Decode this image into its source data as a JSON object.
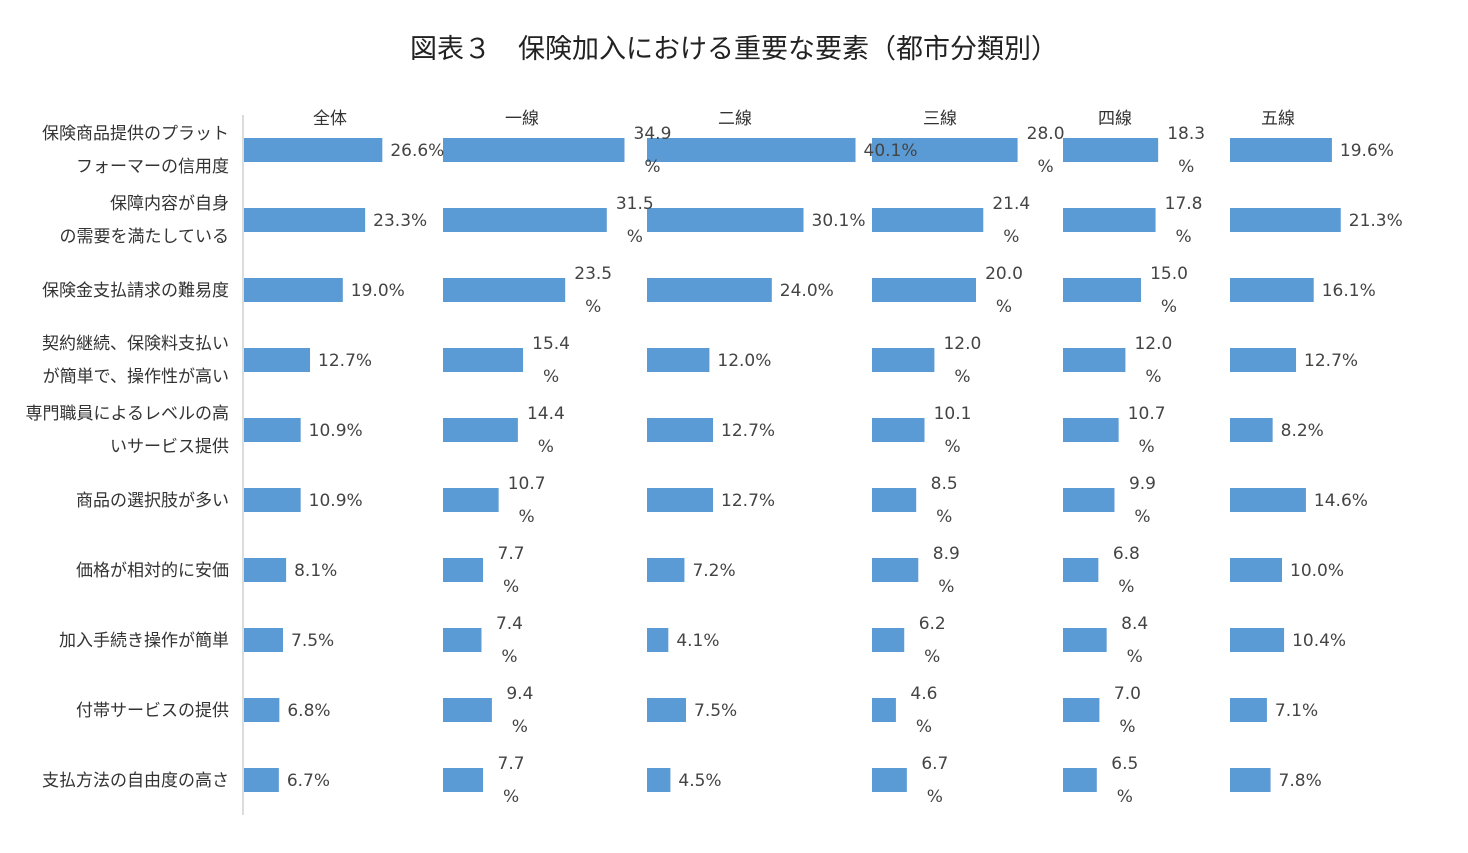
{
  "chart_data": {
    "type": "bar",
    "title": "図表３　保険加入における重要な要素（都市分類別）",
    "xlabel": "",
    "ylabel": "",
    "bar_color": "#5b9bd5",
    "categories": [
      [
        "保険商品提供のプラット",
        "フォーマーの信用度"
      ],
      [
        "保障内容が自身",
        "の需要を満たしている"
      ],
      [
        "保険金支払請求の難易度"
      ],
      [
        "契約継続、保険料支払い",
        "が簡単で、操作性が高い"
      ],
      [
        "専門職員によるレベルの高",
        "いサービス提供"
      ],
      [
        "商品の選択肢が多い"
      ],
      [
        "価格が相対的に安価"
      ],
      [
        "加入手続き操作が簡単"
      ],
      [
        "付帯サービスの提供"
      ],
      [
        "支払方法の自由度の高さ"
      ]
    ],
    "series": [
      {
        "name": "全体",
        "values": [
          26.6,
          23.3,
          19.0,
          12.7,
          10.9,
          10.9,
          8.1,
          7.5,
          6.8,
          6.7
        ],
        "labels": [
          [
            "26.6%"
          ],
          [
            "23.3%"
          ],
          [
            "19.0%"
          ],
          [
            "12.7%"
          ],
          [
            "10.9%"
          ],
          [
            "10.9%"
          ],
          [
            "8.1%"
          ],
          [
            "7.5%"
          ],
          [
            "6.8%"
          ],
          [
            "6.7%"
          ]
        ]
      },
      {
        "name": "一線",
        "values": [
          34.9,
          31.5,
          23.5,
          15.4,
          14.4,
          10.7,
          7.7,
          7.4,
          9.4,
          7.7
        ],
        "labels": [
          [
            "34.9",
            "%"
          ],
          [
            "31.5",
            "%"
          ],
          [
            "23.5",
            "%"
          ],
          [
            "15.4",
            "%"
          ],
          [
            "14.4",
            "%"
          ],
          [
            "10.7",
            "%"
          ],
          [
            "7.7",
            "%"
          ],
          [
            "7.4",
            "%"
          ],
          [
            "9.4",
            "%"
          ],
          [
            "7.7",
            "%"
          ]
        ]
      },
      {
        "name": "二線",
        "values": [
          40.1,
          30.1,
          24.0,
          12.0,
          12.7,
          12.7,
          7.2,
          4.1,
          7.5,
          4.5
        ],
        "labels": [
          [
            "40.1%"
          ],
          [
            "30.1%"
          ],
          [
            "24.0%"
          ],
          [
            "12.0%"
          ],
          [
            "12.7%"
          ],
          [
            "12.7%"
          ],
          [
            "7.2%"
          ],
          [
            "4.1%"
          ],
          [
            "7.5%"
          ],
          [
            "4.5%"
          ]
        ]
      },
      {
        "name": "三線",
        "values": [
          28.0,
          21.4,
          20.0,
          12.0,
          10.1,
          8.5,
          8.9,
          6.2,
          4.6,
          6.7
        ],
        "labels": [
          [
            "28.0",
            "%"
          ],
          [
            "21.4",
            "%"
          ],
          [
            "20.0",
            "%"
          ],
          [
            "12.0",
            "%"
          ],
          [
            "10.1",
            "%"
          ],
          [
            "8.5",
            "%"
          ],
          [
            "8.9",
            "%"
          ],
          [
            "6.2",
            "%"
          ],
          [
            "4.6",
            "%"
          ],
          [
            "6.7",
            "%"
          ]
        ]
      },
      {
        "name": "四線",
        "values": [
          18.3,
          17.8,
          15.0,
          12.0,
          10.7,
          9.9,
          6.8,
          8.4,
          7.0,
          6.5
        ],
        "labels": [
          [
            "18.3",
            "%"
          ],
          [
            "17.8",
            "%"
          ],
          [
            "15.0",
            "%"
          ],
          [
            "12.0",
            "%"
          ],
          [
            "10.7",
            "%"
          ],
          [
            "9.9",
            "%"
          ],
          [
            "6.8",
            "%"
          ],
          [
            "8.4",
            "%"
          ],
          [
            "7.0",
            "%"
          ],
          [
            "6.5",
            "%"
          ]
        ]
      },
      {
        "name": "五線",
        "values": [
          19.6,
          21.3,
          16.1,
          12.7,
          8.2,
          14.6,
          10.0,
          10.4,
          7.1,
          7.8
        ],
        "labels": [
          [
            "19.6%"
          ],
          [
            "21.3%"
          ],
          [
            "16.1%"
          ],
          [
            "12.7%"
          ],
          [
            "8.2%"
          ],
          [
            "14.6%"
          ],
          [
            "10.0%"
          ],
          [
            "10.4%"
          ],
          [
            "7.1%"
          ],
          [
            "7.8%"
          ]
        ]
      }
    ]
  }
}
